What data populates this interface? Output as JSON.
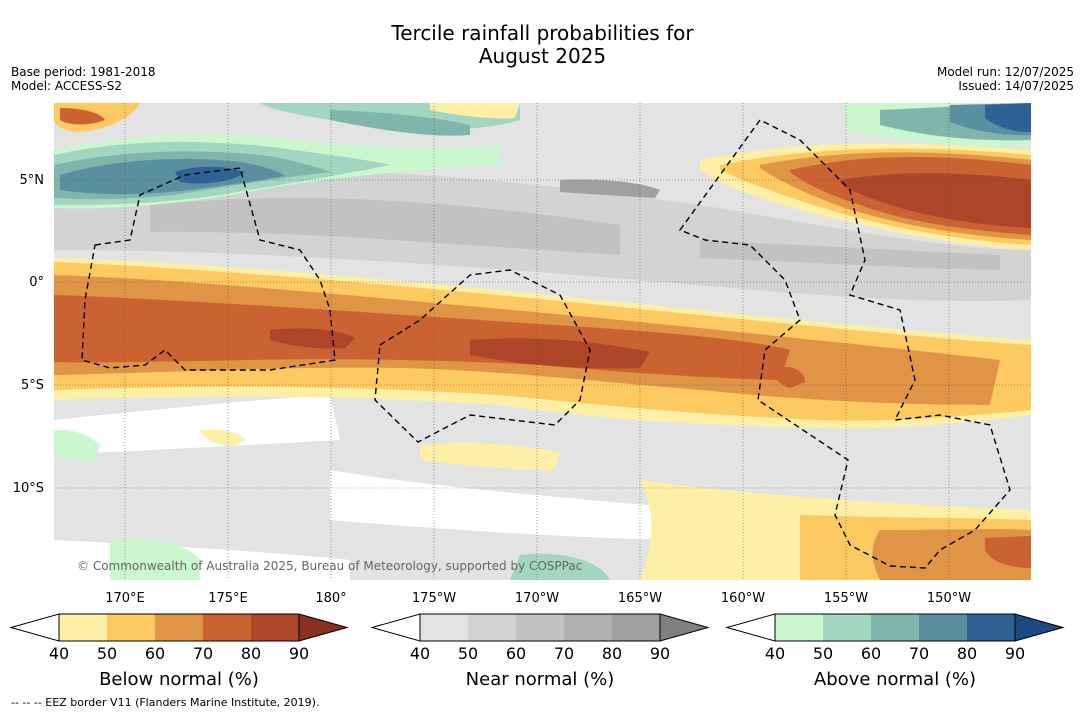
{
  "title_line1": "Tercile rainfall probabilities for",
  "title_line2": "August 2025",
  "meta_left": [
    "Base period: 1981-2018",
    "Model: ACCESS-S2"
  ],
  "meta_right": [
    "Model run: 12/07/2025",
    "Issued: 14/07/2025"
  ],
  "map": {
    "lat_labels": [
      "5°N",
      "0°",
      "5°S",
      "10°S"
    ],
    "lon_labels": [
      "170°E",
      "175°E",
      "180°",
      "175°W",
      "170°W",
      "165°W",
      "160°W",
      "155°W",
      "150°W"
    ],
    "credit": "© Commonwealth of Australia 2025, Bureau of Meteorology, supported by COSPPac"
  },
  "colorbars": [
    {
      "id": "below",
      "title": "Below normal (%)",
      "ticks": [
        "40",
        "50",
        "60",
        "70",
        "80",
        "90"
      ],
      "colors": [
        "#fdefa5",
        "#fdc961",
        "#e09445",
        "#cb6232",
        "#ad4528",
        "#8a3020"
      ]
    },
    {
      "id": "near",
      "title": "Near normal (%)",
      "ticks": [
        "40",
        "50",
        "60",
        "70",
        "80",
        "90"
      ],
      "colors": [
        "#e3e3e3",
        "#d3d3d3",
        "#c2c2c2",
        "#b0b0b0",
        "#a0a0a0",
        "#808080"
      ]
    },
    {
      "id": "above",
      "title": "Above normal (%)",
      "ticks": [
        "40",
        "50",
        "60",
        "70",
        "80",
        "90"
      ],
      "colors": [
        "#caf7cd",
        "#a3d6c0",
        "#80b5ac",
        "#5a8fa0",
        "#2e6195",
        "#1b4a80"
      ]
    }
  ],
  "footer": "--  --  -- EEZ border V11 (Flanders Marine Institute, 2019)."
}
